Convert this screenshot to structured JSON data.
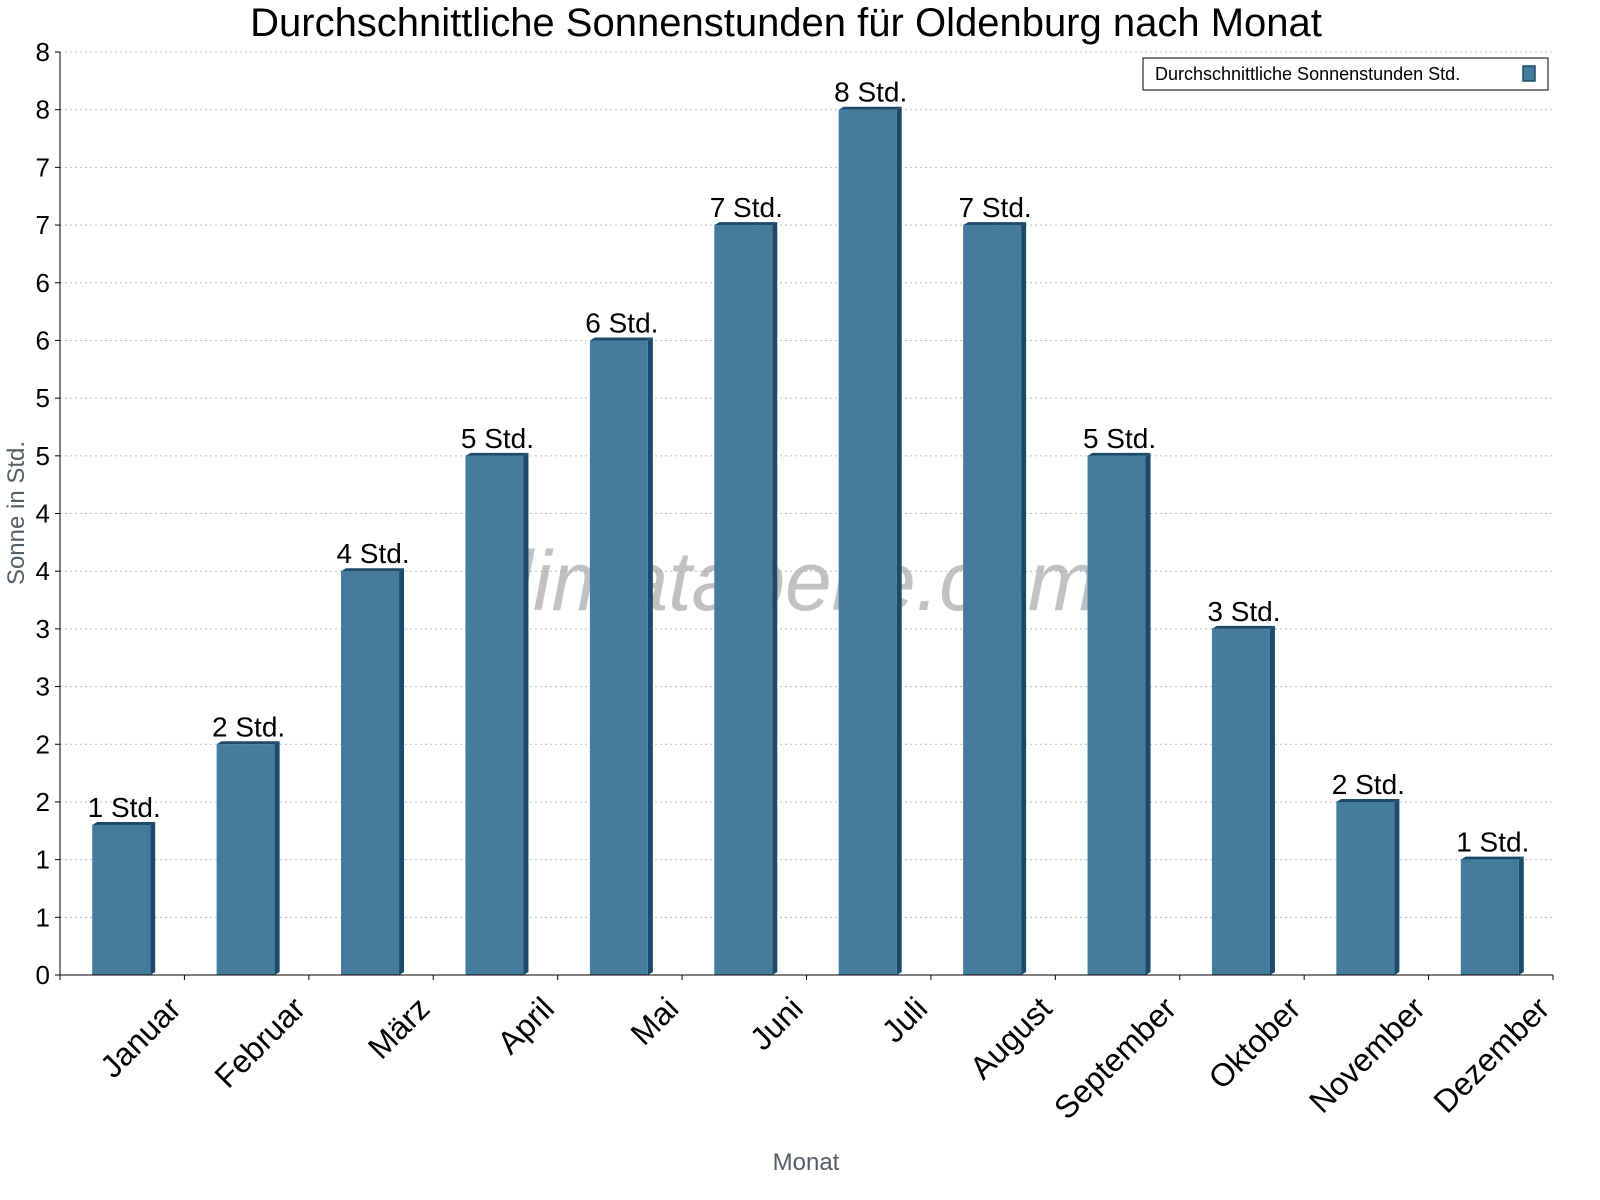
{
  "chart_data": {
    "type": "bar",
    "title": "Durchschnittliche Sonnenstunden für Oldenburg nach Monat",
    "xlabel": "Monat",
    "ylabel": "Sonne in Std.",
    "categories": [
      "Januar",
      "Februar",
      "März",
      "April",
      "Mai",
      "Juni",
      "Juli",
      "August",
      "September",
      "Oktober",
      "November",
      "Dezember"
    ],
    "series": [
      {
        "name": "Durchschnittliche Sonnenstunden Std.",
        "values": [
          1.3,
          2.0,
          3.5,
          4.5,
          5.5,
          6.5,
          7.5,
          6.5,
          4.5,
          3.0,
          1.5,
          1.0
        ],
        "data_labels": [
          "1 Std.",
          "2 Std.",
          "4 Std.",
          "5 Std.",
          "6 Std.",
          "7 Std.",
          "8 Std.",
          "7 Std.",
          "5 Std.",
          "3 Std.",
          "2 Std.",
          "1 Std."
        ],
        "color": "#457b9d",
        "side_color": "#1d4a6b"
      }
    ],
    "ylim": [
      0,
      8
    ],
    "ytick_values": [
      0,
      0.5,
      1,
      1.5,
      2,
      2.5,
      3,
      3.5,
      4,
      4.5,
      5,
      5.5,
      6,
      6.5,
      7,
      7.5,
      8
    ],
    "ytick_labels": [
      "0",
      "1",
      "1",
      "2",
      "2",
      "3",
      "3",
      "4",
      "4",
      "5",
      "5",
      "6",
      "6",
      "7",
      "7",
      "8",
      "8"
    ],
    "grid": true,
    "legend_position": "top-right",
    "watermark": "klimatabelle.com"
  }
}
